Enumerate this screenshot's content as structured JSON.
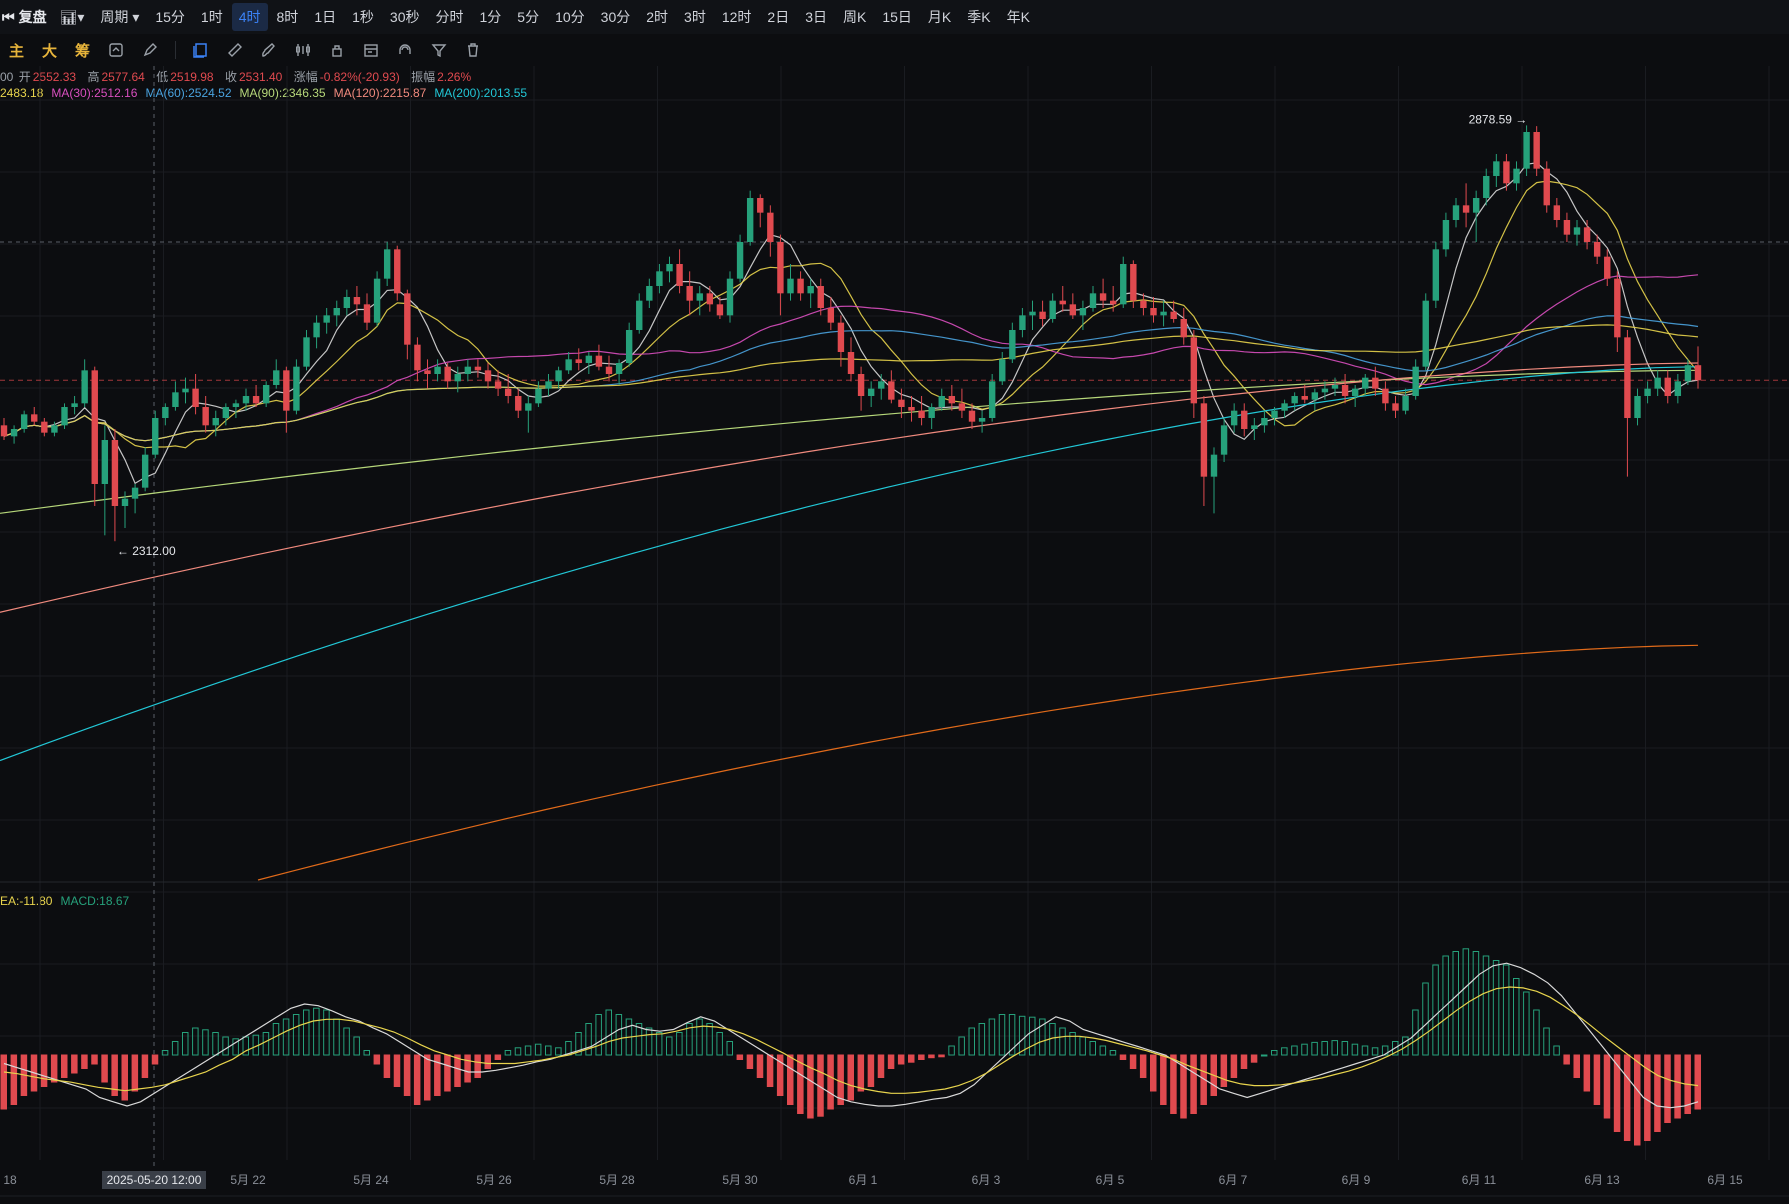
{
  "topbar": {
    "replay_label": "复盘",
    "period_label": "周期",
    "intervals": [
      "15分",
      "1时",
      "4时",
      "8时",
      "1日",
      "1秒",
      "30秒",
      "分时",
      "1分",
      "5分",
      "10分",
      "30分",
      "2时",
      "3时",
      "12时",
      "2日",
      "3日",
      "周K",
      "15日",
      "月K",
      "季K",
      "年K"
    ],
    "active_interval": "4时"
  },
  "toolbar": {
    "labels": [
      "主",
      "大",
      "筹"
    ],
    "icons": [
      "layers-icon",
      "ruler-icon",
      "brush-icon",
      "indicator-icon",
      "lock-icon",
      "calendar-icon",
      "magnet-icon",
      "filter-icon",
      "trash-icon"
    ]
  },
  "ohlc": {
    "prefix": "00",
    "open_label": "开",
    "open": "2552.33",
    "high_label": "高",
    "high": "2577.64",
    "low_label": "低",
    "low": "2519.98",
    "close_label": "收",
    "close": "2531.40",
    "change_label": "涨幅",
    "change": "-0.82%(-20.93)",
    "amp_label": "振幅",
    "amp": "2.26%"
  },
  "ma_legend": [
    {
      "text": "2483.18",
      "color": "#e8d44d"
    },
    {
      "text": "MA(30):2512.16",
      "color": "#d94fbf"
    },
    {
      "text": "MA(60):2524.52",
      "color": "#4aa3df"
    },
    {
      "text": "MA(90):2346.35",
      "color": "#b6d77a"
    },
    {
      "text": "MA(120):2215.87",
      "color": "#f08a7e"
    },
    {
      "text": "MA(200):2013.55",
      "color": "#22c7d6"
    }
  ],
  "macd_legend": [
    {
      "text": "EA:-11.80",
      "color": "#e8d44d"
    },
    {
      "text": "MACD:18.67",
      "color": "#26a17b"
    }
  ],
  "colors": {
    "up": "#26a17b",
    "down": "#e04a4f",
    "grid": "#1a1c21",
    "axis_text": "#8b9099"
  },
  "chart_data": {
    "type": "candlestick",
    "x_tick_labels": [
      "18",
      "5月 22",
      "5月 24",
      "5月 26",
      "5月 28",
      "5月 30",
      "6月 1",
      "6月 3",
      "6月 5",
      "6月 7",
      "6月 9",
      "6月 11",
      "6月 13",
      "6月 15"
    ],
    "crosshair_label": "2025-05-20 12:00",
    "annotations": [
      {
        "text": "2878.59",
        "type": "max"
      },
      {
        "text": "2312.00",
        "type": "min"
      }
    ],
    "price_range": [
      1850,
      2900
    ],
    "candles": [
      [
        2470,
        2480,
        2450,
        2455
      ],
      [
        2455,
        2470,
        2445,
        2465
      ],
      [
        2465,
        2490,
        2460,
        2485
      ],
      [
        2485,
        2495,
        2470,
        2475
      ],
      [
        2475,
        2480,
        2455,
        2460
      ],
      [
        2460,
        2475,
        2455,
        2470
      ],
      [
        2470,
        2500,
        2465,
        2495
      ],
      [
        2495,
        2510,
        2485,
        2500
      ],
      [
        2500,
        2560,
        2495,
        2545
      ],
      [
        2545,
        2550,
        2360,
        2390
      ],
      [
        2390,
        2470,
        2320,
        2450
      ],
      [
        2450,
        2465,
        2312,
        2360
      ],
      [
        2360,
        2380,
        2330,
        2370
      ],
      [
        2370,
        2390,
        2350,
        2385
      ],
      [
        2385,
        2440,
        2380,
        2430
      ],
      [
        2430,
        2490,
        2425,
        2480
      ],
      [
        2480,
        2500,
        2470,
        2495
      ],
      [
        2495,
        2530,
        2490,
        2515
      ],
      [
        2515,
        2535,
        2500,
        2520
      ],
      [
        2520,
        2540,
        2485,
        2495
      ],
      [
        2495,
        2510,
        2460,
        2470
      ],
      [
        2470,
        2490,
        2455,
        2480
      ],
      [
        2480,
        2500,
        2470,
        2495
      ],
      [
        2495,
        2505,
        2480,
        2500
      ],
      [
        2500,
        2520,
        2490,
        2510
      ],
      [
        2510,
        2525,
        2495,
        2500
      ],
      [
        2500,
        2530,
        2495,
        2525
      ],
      [
        2525,
        2560,
        2520,
        2545
      ],
      [
        2545,
        2550,
        2460,
        2490
      ],
      [
        2490,
        2560,
        2485,
        2550
      ],
      [
        2550,
        2600,
        2545,
        2590
      ],
      [
        2590,
        2620,
        2575,
        2610
      ],
      [
        2610,
        2630,
        2595,
        2620
      ],
      [
        2620,
        2640,
        2605,
        2630
      ],
      [
        2630,
        2655,
        2620,
        2645
      ],
      [
        2645,
        2660,
        2620,
        2635
      ],
      [
        2635,
        2650,
        2600,
        2610
      ],
      [
        2610,
        2680,
        2605,
        2670
      ],
      [
        2670,
        2720,
        2660,
        2710
      ],
      [
        2710,
        2715,
        2640,
        2650
      ],
      [
        2650,
        2655,
        2560,
        2580
      ],
      [
        2580,
        2590,
        2530,
        2545
      ],
      [
        2545,
        2560,
        2520,
        2540
      ],
      [
        2540,
        2560,
        2530,
        2550
      ],
      [
        2550,
        2555,
        2520,
        2530
      ],
      [
        2530,
        2550,
        2515,
        2540
      ],
      [
        2540,
        2560,
        2530,
        2550
      ],
      [
        2550,
        2560,
        2535,
        2545
      ],
      [
        2545,
        2555,
        2520,
        2530
      ],
      [
        2530,
        2545,
        2510,
        2520
      ],
      [
        2520,
        2540,
        2500,
        2510
      ],
      [
        2510,
        2520,
        2480,
        2490
      ],
      [
        2490,
        2510,
        2460,
        2500
      ],
      [
        2500,
        2530,
        2495,
        2520
      ],
      [
        2520,
        2540,
        2510,
        2530
      ],
      [
        2530,
        2550,
        2520,
        2545
      ],
      [
        2545,
        2570,
        2540,
        2560
      ],
      [
        2560,
        2575,
        2545,
        2555
      ],
      [
        2555,
        2570,
        2540,
        2565
      ],
      [
        2565,
        2580,
        2545,
        2550
      ],
      [
        2550,
        2565,
        2530,
        2540
      ],
      [
        2540,
        2560,
        2525,
        2555
      ],
      [
        2555,
        2610,
        2550,
        2600
      ],
      [
        2600,
        2650,
        2595,
        2640
      ],
      [
        2640,
        2670,
        2630,
        2660
      ],
      [
        2660,
        2690,
        2650,
        2680
      ],
      [
        2680,
        2700,
        2665,
        2690
      ],
      [
        2690,
        2710,
        2650,
        2660
      ],
      [
        2660,
        2680,
        2620,
        2640
      ],
      [
        2640,
        2660,
        2620,
        2650
      ],
      [
        2650,
        2660,
        2625,
        2635
      ],
      [
        2635,
        2645,
        2615,
        2620
      ],
      [
        2620,
        2680,
        2610,
        2670
      ],
      [
        2670,
        2730,
        2665,
        2720
      ],
      [
        2720,
        2790,
        2715,
        2780
      ],
      [
        2780,
        2785,
        2740,
        2760
      ],
      [
        2760,
        2770,
        2700,
        2720
      ],
      [
        2720,
        2730,
        2620,
        2650
      ],
      [
        2650,
        2690,
        2640,
        2670
      ],
      [
        2670,
        2680,
        2640,
        2650
      ],
      [
        2650,
        2670,
        2630,
        2660
      ],
      [
        2660,
        2670,
        2620,
        2630
      ],
      [
        2630,
        2645,
        2600,
        2610
      ],
      [
        2610,
        2620,
        2550,
        2570
      ],
      [
        2570,
        2590,
        2530,
        2540
      ],
      [
        2540,
        2550,
        2490,
        2510
      ],
      [
        2510,
        2530,
        2495,
        2520
      ],
      [
        2520,
        2540,
        2505,
        2530
      ],
      [
        2530,
        2545,
        2500,
        2505
      ],
      [
        2505,
        2520,
        2480,
        2495
      ],
      [
        2495,
        2510,
        2475,
        2490
      ],
      [
        2490,
        2510,
        2470,
        2480
      ],
      [
        2480,
        2500,
        2465,
        2495
      ],
      [
        2495,
        2520,
        2490,
        2510
      ],
      [
        2510,
        2525,
        2490,
        2500
      ],
      [
        2500,
        2520,
        2480,
        2490
      ],
      [
        2490,
        2500,
        2465,
        2475
      ],
      [
        2475,
        2490,
        2460,
        2480
      ],
      [
        2480,
        2540,
        2475,
        2530
      ],
      [
        2530,
        2570,
        2525,
        2560
      ],
      [
        2560,
        2610,
        2555,
        2600
      ],
      [
        2600,
        2630,
        2590,
        2620
      ],
      [
        2620,
        2640,
        2600,
        2625
      ],
      [
        2625,
        2640,
        2605,
        2615
      ],
      [
        2615,
        2650,
        2610,
        2640
      ],
      [
        2640,
        2660,
        2625,
        2635
      ],
      [
        2635,
        2650,
        2615,
        2620
      ],
      [
        2620,
        2640,
        2600,
        2630
      ],
      [
        2630,
        2660,
        2625,
        2650
      ],
      [
        2650,
        2670,
        2630,
        2640
      ],
      [
        2640,
        2660,
        2625,
        2635
      ],
      [
        2635,
        2700,
        2630,
        2690
      ],
      [
        2690,
        2695,
        2630,
        2640
      ],
      [
        2640,
        2650,
        2620,
        2630
      ],
      [
        2630,
        2645,
        2610,
        2620
      ],
      [
        2620,
        2640,
        2605,
        2625
      ],
      [
        2625,
        2640,
        2610,
        2615
      ],
      [
        2615,
        2630,
        2580,
        2590
      ],
      [
        2590,
        2600,
        2480,
        2500
      ],
      [
        2500,
        2510,
        2360,
        2400
      ],
      [
        2400,
        2440,
        2350,
        2430
      ],
      [
        2430,
        2480,
        2420,
        2470
      ],
      [
        2470,
        2500,
        2460,
        2490
      ],
      [
        2490,
        2500,
        2455,
        2465
      ],
      [
        2465,
        2480,
        2450,
        2470
      ],
      [
        2470,
        2490,
        2460,
        2480
      ],
      [
        2480,
        2495,
        2470,
        2490
      ],
      [
        2490,
        2505,
        2480,
        2500
      ],
      [
        2500,
        2515,
        2490,
        2510
      ],
      [
        2510,
        2525,
        2500,
        2505
      ],
      [
        2505,
        2520,
        2490,
        2515
      ],
      [
        2515,
        2530,
        2505,
        2520
      ],
      [
        2520,
        2535,
        2510,
        2525
      ],
      [
        2525,
        2540,
        2500,
        2510
      ],
      [
        2510,
        2525,
        2495,
        2520
      ],
      [
        2520,
        2540,
        2510,
        2535
      ],
      [
        2535,
        2550,
        2510,
        2520
      ],
      [
        2520,
        2530,
        2490,
        2500
      ],
      [
        2500,
        2510,
        2480,
        2490
      ],
      [
        2490,
        2520,
        2485,
        2510
      ],
      [
        2510,
        2560,
        2505,
        2550
      ],
      [
        2550,
        2650,
        2545,
        2640
      ],
      [
        2640,
        2720,
        2630,
        2710
      ],
      [
        2710,
        2760,
        2700,
        2750
      ],
      [
        2750,
        2780,
        2740,
        2770
      ],
      [
        2770,
        2800,
        2740,
        2760
      ],
      [
        2760,
        2790,
        2720,
        2780
      ],
      [
        2780,
        2820,
        2770,
        2810
      ],
      [
        2810,
        2840,
        2795,
        2830
      ],
      [
        2830,
        2840,
        2790,
        2800
      ],
      [
        2800,
        2830,
        2790,
        2820
      ],
      [
        2820,
        2879,
        2810,
        2870
      ],
      [
        2870,
        2878,
        2810,
        2820
      ],
      [
        2820,
        2830,
        2760,
        2770
      ],
      [
        2770,
        2780,
        2740,
        2750
      ],
      [
        2750,
        2760,
        2720,
        2730
      ],
      [
        2730,
        2750,
        2715,
        2740
      ],
      [
        2740,
        2750,
        2710,
        2720
      ],
      [
        2720,
        2730,
        2690,
        2700
      ],
      [
        2700,
        2710,
        2660,
        2670
      ],
      [
        2670,
        2680,
        2570,
        2590
      ],
      [
        2590,
        2600,
        2400,
        2480
      ],
      [
        2480,
        2520,
        2470,
        2510
      ],
      [
        2510,
        2530,
        2500,
        2520
      ],
      [
        2520,
        2545,
        2510,
        2535
      ],
      [
        2535,
        2545,
        2500,
        2510
      ],
      [
        2510,
        2540,
        2500,
        2530
      ],
      [
        2530,
        2560,
        2525,
        2552
      ],
      [
        2552,
        2577.64,
        2519.98,
        2531.4
      ]
    ],
    "macd": {
      "hist": [
        -60,
        -55,
        -45,
        -40,
        -35,
        -30,
        -25,
        -20,
        -15,
        -10,
        -30,
        -45,
        -50,
        -40,
        -25,
        -10,
        5,
        15,
        25,
        30,
        28,
        25,
        20,
        18,
        20,
        22,
        25,
        35,
        40,
        45,
        50,
        52,
        50,
        40,
        30,
        20,
        5,
        -10,
        -25,
        -35,
        -45,
        -55,
        -50,
        -45,
        -40,
        -35,
        -30,
        -25,
        -15,
        -5,
        5,
        8,
        10,
        12,
        10,
        8,
        15,
        25,
        35,
        45,
        50,
        45,
        40,
        35,
        30,
        25,
        20,
        25,
        35,
        40,
        35,
        25,
        15,
        -5,
        -15,
        -25,
        -35,
        -45,
        -55,
        -65,
        -70,
        -68,
        -60,
        -55,
        -50,
        -40,
        -35,
        -25,
        -15,
        -10,
        -8,
        -5,
        -3,
        -2,
        10,
        20,
        30,
        35,
        40,
        45,
        45,
        43,
        42,
        40,
        35,
        30,
        25,
        20,
        15,
        10,
        5,
        -5,
        -15,
        -25,
        -40,
        -55,
        -65,
        -70,
        -65,
        -55,
        -45,
        -35,
        -25,
        -15,
        -8,
        0,
        5,
        8,
        10,
        12,
        14,
        15,
        16,
        15,
        12,
        10,
        8,
        10,
        15,
        20,
        50,
        80,
        100,
        110,
        115,
        118,
        115,
        110,
        105,
        100,
        85,
        70,
        50,
        30,
        10,
        -10,
        -25,
        -40,
        -55,
        -70,
        -85,
        -95,
        -100,
        -95,
        -85,
        -75,
        -70,
        -65,
        -60
      ],
      "dif": [
        -10,
        -15,
        -20,
        -25,
        -30,
        -35,
        -40,
        -50,
        -55,
        -60,
        -55,
        -45,
        -35,
        -25,
        -15,
        -5,
        5,
        15,
        25,
        35,
        45,
        55,
        60,
        58,
        52,
        45,
        40,
        32,
        25,
        15,
        5,
        -5,
        -10,
        -15,
        -20,
        -20,
        -18,
        -15,
        -12,
        -8,
        -5,
        0,
        5,
        10,
        20,
        30,
        35,
        30,
        28,
        30,
        38,
        45,
        40,
        30,
        20,
        10,
        0,
        -10,
        -20,
        -30,
        -40,
        -50,
        -55,
        -58,
        -60,
        -60,
        -58,
        -55,
        -52,
        -50,
        -45,
        -35,
        -20,
        -5,
        10,
        25,
        35,
        45,
        40,
        30,
        25,
        20,
        15,
        10,
        5,
        0,
        -10,
        -20,
        -30,
        -40,
        -45,
        -50,
        -45,
        -40,
        -35,
        -30,
        -25,
        -20,
        -15,
        -10,
        -5,
        0,
        10,
        20,
        35,
        50,
        65,
        80,
        95,
        105,
        108,
        103,
        95,
        85,
        70,
        50,
        30,
        10,
        -10,
        -30,
        -50,
        -60,
        -62,
        -60,
        -55
      ],
      "dea": [
        -20,
        -22,
        -25,
        -28,
        -30,
        -32,
        -35,
        -38,
        -40,
        -42,
        -40,
        -38,
        -35,
        -30,
        -25,
        -20,
        -12,
        -5,
        5,
        12,
        20,
        28,
        35,
        40,
        42,
        42,
        40,
        36,
        32,
        27,
        20,
        12,
        5,
        0,
        -5,
        -8,
        -10,
        -10,
        -10,
        -8,
        -6,
        -3,
        0,
        5,
        10,
        16,
        20,
        22,
        24,
        25,
        28,
        32,
        34,
        33,
        30,
        25,
        18,
        10,
        2,
        -7,
        -15,
        -22,
        -30,
        -36,
        -40,
        -43,
        -45,
        -45,
        -44,
        -42,
        -40,
        -36,
        -30,
        -22,
        -12,
        -2,
        7,
        15,
        20,
        22,
        22,
        20,
        17,
        13,
        9,
        5,
        0,
        -5,
        -12,
        -18,
        -24,
        -30,
        -34,
        -36,
        -36,
        -35,
        -33,
        -30,
        -27,
        -23,
        -19,
        -14,
        -8,
        -1,
        7,
        17,
        28,
        40,
        52,
        63,
        72,
        78,
        80,
        79,
        75,
        68,
        58,
        47,
        35,
        22,
        10,
        -2,
        -14,
        -24,
        -30,
        -34,
        -36
      ]
    }
  }
}
